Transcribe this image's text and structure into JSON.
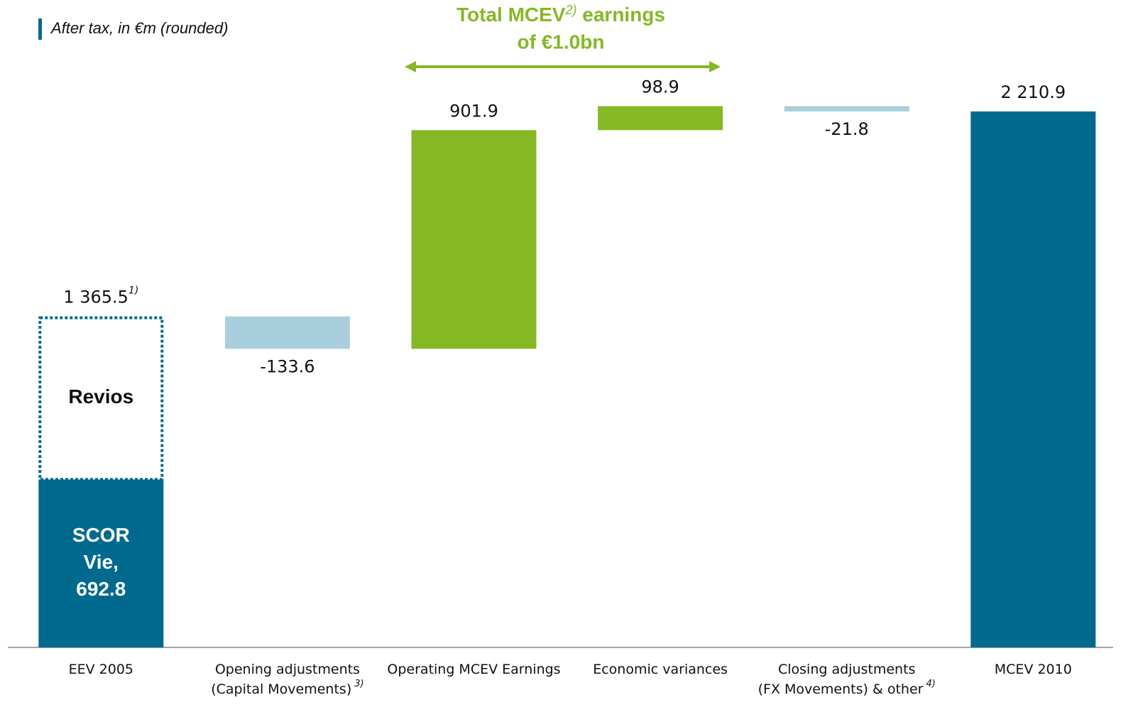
{
  "chart_data": {
    "type": "waterfall",
    "subtitle": "After tax, in €m (rounded)",
    "annotation": {
      "text": "Total MCEV",
      "note": "2)",
      "text_after": " earnings",
      "line2": "of €1.0bn"
    },
    "categories": [
      [
        "EEV 2005"
      ],
      [
        "Opening adjustments",
        "(Capital Movements)"
      ],
      [
        "Operating MCEV Earnings"
      ],
      [
        "Economic variances"
      ],
      [
        "Closing adjustments",
        "(FX Movements) & other"
      ],
      [
        "MCEV 2010"
      ]
    ],
    "category_notes": {
      "1": "3)",
      "4": "4)"
    },
    "values": [
      1365.5,
      -133.6,
      901.9,
      98.9,
      -21.8,
      2210.9
    ],
    "value_labels": [
      "1 365.5",
      "-133.6",
      "901.9",
      "98.9",
      "-21.8",
      "2 210.9"
    ],
    "label_notes": {
      "0": "1)"
    },
    "breakdown": [
      {
        "name_lines": [
          "SCOR",
          "Vie,"
        ],
        "value": 692.8,
        "color": "#006a8e"
      },
      {
        "name": "Revios",
        "value": 672.7,
        "color": "#006a8e",
        "style": "dashed"
      }
    ],
    "colors": {
      "total": "#006a8e",
      "negative": "#aacfdc",
      "positive": "#86b825",
      "annotation": "#86b825"
    },
    "ylim": [
      0,
      2300
    ]
  }
}
